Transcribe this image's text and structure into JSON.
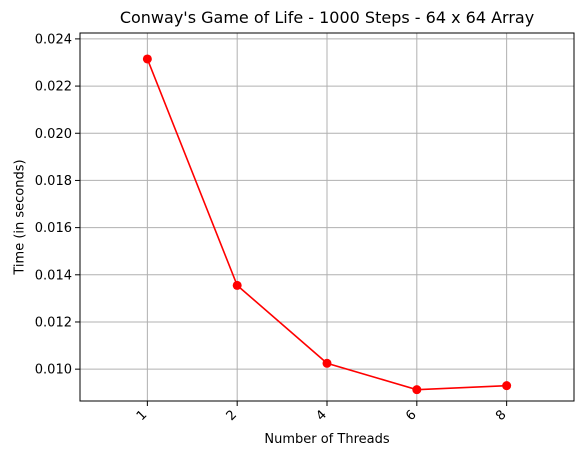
{
  "chart_data": {
    "type": "line",
    "title": "Conway's Game of Life - 1000 Steps - 64 x 64 Array",
    "xlabel": "Number of Threads",
    "ylabel": "Time (in seconds)",
    "categories": [
      "1",
      "2",
      "4",
      "6",
      "8"
    ],
    "series": [
      {
        "values": [
          0.02315,
          0.01355,
          0.01025,
          0.00913,
          0.0093
        ]
      }
    ],
    "ylim": [
      0.00865,
      0.02425
    ],
    "yticks": [
      "0.010",
      "0.012",
      "0.014",
      "0.016",
      "0.018",
      "0.020",
      "0.022",
      "0.024"
    ],
    "grid": true,
    "line_color": "#ff0000",
    "grid_color": "#b0b0b0"
  }
}
